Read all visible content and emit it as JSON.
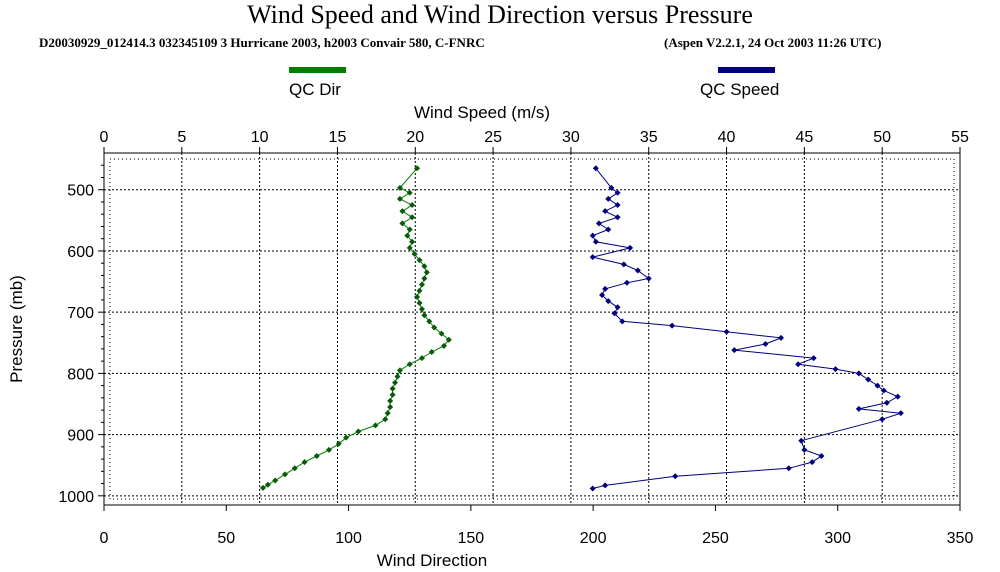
{
  "chart_data": {
    "type": "line",
    "title": "Wind Speed and Wind Direction versus Pressure",
    "subtitle_left": "D20030929_012414.3 032345109 3 Hurricane 2003, h2003 Convair 580, C-FNRC",
    "subtitle_right": "(Aspen V2.2.1, 24 Oct 2003  11:26 UTC)",
    "top_xlabel": "Wind Speed (m/s)",
    "bottom_xlabel": "Wind Direction",
    "ylabel": "Pressure (mb)",
    "top_xlim": [
      0,
      55
    ],
    "top_ticks": [
      0,
      5,
      10,
      15,
      20,
      25,
      30,
      35,
      40,
      45,
      50,
      55
    ],
    "bottom_xlim": [
      0,
      350
    ],
    "bottom_ticks": [
      0,
      50,
      100,
      150,
      200,
      250,
      300,
      350
    ],
    "ylim": [
      440,
      1015
    ],
    "y_ticks": [
      500,
      600,
      700,
      800,
      900,
      1000
    ],
    "grid": true,
    "legend": [
      {
        "name": "QC Dir",
        "color": "#008000"
      },
      {
        "name": "QC Speed",
        "color": "#00007f"
      }
    ],
    "series": [
      {
        "name": "QC Dir",
        "axis": "direction",
        "color": "#008000",
        "points": [
          [
            128,
            465
          ],
          [
            121,
            497
          ],
          [
            125,
            505
          ],
          [
            121,
            515
          ],
          [
            126,
            525
          ],
          [
            122,
            535
          ],
          [
            126,
            545
          ],
          [
            122,
            555
          ],
          [
            125,
            565
          ],
          [
            124,
            575
          ],
          [
            126,
            585
          ],
          [
            125,
            595
          ],
          [
            127,
            605
          ],
          [
            129,
            615
          ],
          [
            131,
            625
          ],
          [
            132,
            635
          ],
          [
            131,
            645
          ],
          [
            130,
            655
          ],
          [
            129,
            665
          ],
          [
            128,
            675
          ],
          [
            129,
            685
          ],
          [
            130,
            695
          ],
          [
            131,
            705
          ],
          [
            133,
            715
          ],
          [
            135,
            725
          ],
          [
            138,
            735
          ],
          [
            141,
            745
          ],
          [
            139,
            755
          ],
          [
            134,
            765
          ],
          [
            130,
            775
          ],
          [
            125,
            785
          ],
          [
            121,
            795
          ],
          [
            120,
            805
          ],
          [
            119,
            815
          ],
          [
            118,
            825
          ],
          [
            118,
            835
          ],
          [
            117,
            845
          ],
          [
            117,
            855
          ],
          [
            116,
            865
          ],
          [
            115,
            875
          ],
          [
            111,
            885
          ],
          [
            104,
            895
          ],
          [
            99,
            905
          ],
          [
            96,
            915
          ],
          [
            92,
            925
          ],
          [
            87,
            935
          ],
          [
            82,
            945
          ],
          [
            78,
            955
          ],
          [
            74,
            965
          ],
          [
            70,
            975
          ],
          [
            67,
            982
          ],
          [
            65,
            987
          ]
        ]
      },
      {
        "name": "QC Speed",
        "axis": "speed",
        "color": "#00007f",
        "points": [
          [
            31.6,
            465
          ],
          [
            32.6,
            497
          ],
          [
            33.0,
            505
          ],
          [
            32.4,
            515
          ],
          [
            33.0,
            525
          ],
          [
            32.2,
            535
          ],
          [
            33.0,
            545
          ],
          [
            31.8,
            555
          ],
          [
            32.4,
            565
          ],
          [
            31.4,
            575
          ],
          [
            31.6,
            585
          ],
          [
            33.8,
            595
          ],
          [
            31.4,
            610
          ],
          [
            33.4,
            622
          ],
          [
            34.3,
            632
          ],
          [
            35.0,
            645
          ],
          [
            33.6,
            652
          ],
          [
            32.2,
            662
          ],
          [
            32.0,
            672
          ],
          [
            32.4,
            682
          ],
          [
            33.0,
            692
          ],
          [
            32.8,
            702
          ],
          [
            33.3,
            715
          ],
          [
            36.5,
            722
          ],
          [
            40.0,
            732
          ],
          [
            43.5,
            742
          ],
          [
            42.5,
            752
          ],
          [
            40.5,
            762
          ],
          [
            45.6,
            775
          ],
          [
            44.6,
            785
          ],
          [
            47.0,
            793
          ],
          [
            48.5,
            800
          ],
          [
            49.1,
            810
          ],
          [
            49.7,
            820
          ],
          [
            50.1,
            828
          ],
          [
            51.0,
            838
          ],
          [
            50.3,
            848
          ],
          [
            48.5,
            858
          ],
          [
            51.2,
            865
          ],
          [
            50.0,
            875
          ],
          [
            44.8,
            910
          ],
          [
            45.0,
            925
          ],
          [
            46.1,
            935
          ],
          [
            45.5,
            945
          ],
          [
            44.0,
            955
          ],
          [
            36.7,
            968
          ],
          [
            32.2,
            983
          ],
          [
            31.4,
            988
          ]
        ]
      }
    ]
  }
}
